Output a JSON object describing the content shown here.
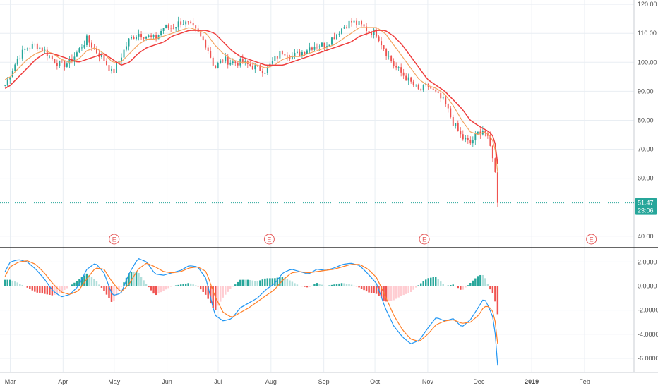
{
  "chart_data": [
    {
      "type": "candlestick",
      "panel": "price",
      "yticks": [
        "120.00",
        "110.00",
        "100.00",
        "90.00",
        "80.00",
        "70.00",
        "60.00",
        "40.00"
      ],
      "ylim": [
        38,
        121
      ],
      "earnings_marker": "E",
      "earnings_dates": [
        "2018-05-01",
        "2018-07-31",
        "2018-10-30",
        "2019-02-05"
      ],
      "last_price": {
        "value": 51.47,
        "label": "51.47",
        "timer": "23:06",
        "color": "#26a69a"
      },
      "ohlc_series": {
        "dates": [
          "2018-02-26",
          "2018-03-01",
          "2018-03-06",
          "2018-03-11",
          "2018-03-16",
          "2018-03-21",
          "2018-03-26",
          "2018-03-31",
          "2018-04-05",
          "2018-04-10",
          "2018-04-15",
          "2018-04-20",
          "2018-04-25",
          "2018-04-30",
          "2018-05-05",
          "2018-05-10",
          "2018-05-15",
          "2018-05-20",
          "2018-05-25",
          "2018-05-30",
          "2018-06-04",
          "2018-06-09",
          "2018-06-14",
          "2018-06-19",
          "2018-06-24",
          "2018-06-29",
          "2018-07-04",
          "2018-07-09",
          "2018-07-14",
          "2018-07-19",
          "2018-07-24",
          "2018-07-29",
          "2018-08-03",
          "2018-08-08",
          "2018-08-13",
          "2018-08-18",
          "2018-08-23",
          "2018-08-28",
          "2018-09-02",
          "2018-09-07",
          "2018-09-12",
          "2018-09-17",
          "2018-09-22",
          "2018-09-27",
          "2018-10-02",
          "2018-10-07",
          "2018-10-12",
          "2018-10-17",
          "2018-10-22",
          "2018-10-27",
          "2018-11-01",
          "2018-11-06",
          "2018-11-11",
          "2018-11-16",
          "2018-11-21",
          "2018-11-26",
          "2018-12-01",
          "2018-12-04",
          "2018-12-07",
          "2018-12-10",
          "2018-12-11",
          "2018-12-12"
        ],
        "close": [
          92,
          96,
          102,
          105,
          106,
          104,
          101,
          99,
          100,
          104,
          108,
          104,
          101,
          96,
          102,
          108,
          110,
          109,
          108,
          112,
          112,
          114,
          113,
          110,
          106,
          98,
          101,
          100,
          100,
          99,
          98,
          97,
          101,
          104,
          102,
          103,
          105,
          106,
          106,
          109,
          112,
          114,
          113,
          111,
          110,
          104,
          99,
          96,
          93,
          90,
          92,
          89,
          86,
          79,
          74,
          72,
          76,
          77,
          72,
          66,
          58,
          51.47
        ]
      },
      "ma_fast": {
        "color": "#f4a460",
        "values": [
          94,
          95,
          98,
          101,
          103,
          104,
          103,
          101,
          100,
          101,
          104,
          105,
          103,
          100,
          100,
          103,
          106,
          108,
          108,
          109,
          110,
          111,
          112,
          111,
          110,
          106,
          103,
          101,
          100,
          100,
          99,
          98,
          99,
          101,
          102,
          102,
          103,
          104,
          105,
          106,
          108,
          110,
          112,
          112,
          112,
          110,
          106,
          102,
          98,
          94,
          92,
          91,
          89,
          85,
          80,
          76,
          75,
          76,
          75,
          72,
          68,
          62
        ]
      },
      "ma_slow": {
        "color": "#ef3d3d",
        "values": [
          91,
          92,
          95,
          98,
          101,
          103,
          103,
          102,
          101,
          100,
          101,
          102,
          103,
          101,
          99,
          100,
          103,
          105,
          106,
          107,
          109,
          110,
          111,
          111,
          111,
          110,
          107,
          104,
          102,
          101,
          100,
          99,
          99,
          99,
          100,
          101,
          102,
          103,
          104,
          105,
          106,
          107,
          109,
          110,
          111,
          111,
          109,
          106,
          102,
          98,
          94,
          92,
          90,
          87,
          84,
          80,
          78,
          77,
          76,
          74,
          70,
          65
        ]
      }
    },
    {
      "type": "macd",
      "panel": "oscillator",
      "yticks": [
        "2.0000",
        "0.0000",
        "-2.0000",
        "-4.0000",
        "-6.0000"
      ],
      "ylim": [
        -7.0,
        2.9
      ],
      "macd_line": {
        "color": "#2196f3",
        "values": [
          1.2,
          2.0,
          2.2,
          2.0,
          1.4,
          0.6,
          -0.4,
          -0.9,
          -0.7,
          0.0,
          1.4,
          1.9,
          1.1,
          -0.8,
          -0.6,
          1.1,
          2.3,
          2.0,
          1.0,
          0.9,
          1.1,
          1.3,
          1.7,
          1.6,
          0.6,
          -2.4,
          -2.9,
          -2.7,
          -1.8,
          -1.4,
          -1.0,
          -0.3,
          0.2,
          1.1,
          1.4,
          1.2,
          1.0,
          1.4,
          1.3,
          1.5,
          1.8,
          1.9,
          1.7,
          1.0,
          0.2,
          -1.8,
          -3.3,
          -4.2,
          -4.8,
          -4.5,
          -3.5,
          -2.6,
          -2.9,
          -2.7,
          -3.4,
          -2.8,
          -1.7,
          -1.0,
          -1.8,
          -2.9,
          -4.8,
          -6.6
        ]
      },
      "signal_line": {
        "color": "#ff7f27",
        "values": [
          0.8,
          1.6,
          2.0,
          2.1,
          1.8,
          1.1,
          0.2,
          -0.5,
          -0.7,
          -0.4,
          0.6,
          1.5,
          1.4,
          0.3,
          -0.5,
          0.2,
          1.4,
          1.9,
          1.6,
          1.2,
          1.1,
          1.2,
          1.5,
          1.6,
          1.2,
          -0.8,
          -2.2,
          -2.6,
          -2.2,
          -1.8,
          -1.3,
          -0.8,
          -0.3,
          0.5,
          1.1,
          1.2,
          1.1,
          1.2,
          1.3,
          1.4,
          1.6,
          1.8,
          1.8,
          1.4,
          0.7,
          -0.8,
          -2.4,
          -3.6,
          -4.4,
          -4.6,
          -4.0,
          -3.2,
          -2.9,
          -2.8,
          -3.1,
          -3.0,
          -2.4,
          -1.7,
          -1.7,
          -2.3,
          -3.5,
          -4.8
        ]
      },
      "histogram_colors": {
        "rising_positive": "#26a69a",
        "falling_positive": "#b2dfdb",
        "falling_negative": "#ef5350",
        "rising_negative": "#ffcdd2"
      }
    }
  ],
  "x_axis": {
    "ticks": [
      {
        "label": "Mar",
        "date": "2018-03-01"
      },
      {
        "label": "Apr",
        "date": "2018-04-01"
      },
      {
        "label": "May",
        "date": "2018-05-01"
      },
      {
        "label": "Jun",
        "date": "2018-06-01"
      },
      {
        "label": "Jul",
        "date": "2018-07-01"
      },
      {
        "label": "Aug",
        "date": "2018-08-01"
      },
      {
        "label": "Sep",
        "date": "2018-09-01"
      },
      {
        "label": "Oct",
        "date": "2018-10-01"
      },
      {
        "label": "Nov",
        "date": "2018-11-01"
      },
      {
        "label": "Dec",
        "date": "2018-12-01"
      },
      {
        "label": "2019",
        "date": "2019-01-01",
        "bold": true
      },
      {
        "label": "Feb",
        "date": "2019-02-01"
      }
    ]
  },
  "colors": {
    "up": "#26a69a",
    "down": "#ef5350",
    "grid": "#e9eef3",
    "text": "#4a4a4a",
    "earnings": "#e55b5b",
    "separator": "#333333"
  }
}
